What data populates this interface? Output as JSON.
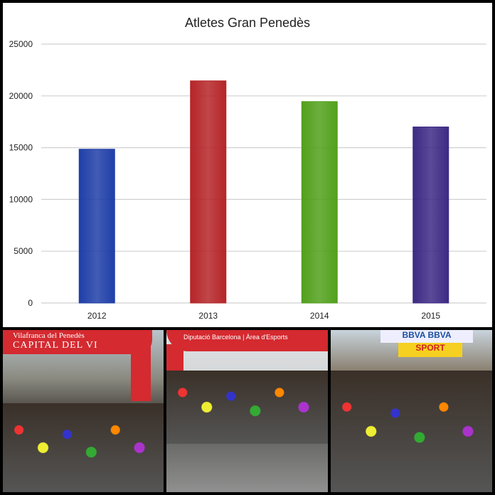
{
  "chart_data": {
    "type": "bar",
    "title": "Atletes Gran Penedès",
    "categories": [
      "2012",
      "2013",
      "2014",
      "2015"
    ],
    "values": [
      14850,
      21450,
      19450,
      17000
    ],
    "colors": [
      "#1f3fa8",
      "#b52528",
      "#52a01c",
      "#3d2a85"
    ],
    "ylim": [
      0,
      25000
    ],
    "yticks": [
      0,
      5000,
      10000,
      15000,
      20000,
      25000
    ],
    "xlabel": "",
    "ylabel": "",
    "grid": true,
    "legend": "none"
  },
  "photos": [
    {
      "logo_line1": "Vilafranca del Penedès",
      "logo_line2": "CAPITAL DEL VI"
    },
    {
      "logo_line1": "Diputació Barcelona",
      "logo_line2": "Àrea d'Esports"
    },
    {
      "logo_line1": "BBVA BBVA",
      "logo_line2": "SPORT"
    }
  ]
}
